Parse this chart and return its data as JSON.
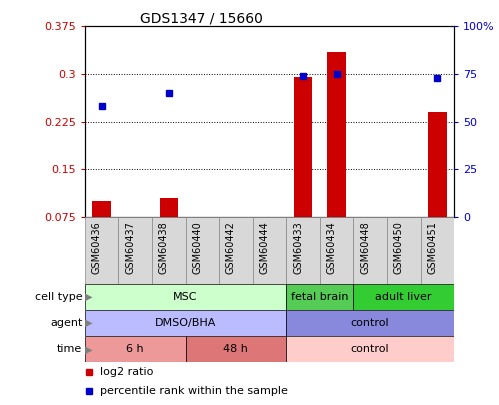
{
  "title": "GDS1347 / 15660",
  "samples": [
    "GSM60436",
    "GSM60437",
    "GSM60438",
    "GSM60440",
    "GSM60442",
    "GSM60444",
    "GSM60433",
    "GSM60434",
    "GSM60448",
    "GSM60450",
    "GSM60451"
  ],
  "log2_ratio": [
    0.1,
    0.0,
    0.105,
    0.0,
    0.0,
    0.0,
    0.295,
    0.335,
    0.0,
    0.0,
    0.24
  ],
  "percentile_rank": [
    58,
    0,
    65,
    0,
    0,
    0,
    74,
    75,
    0,
    0,
    73
  ],
  "ylim_left": [
    0.075,
    0.375
  ],
  "ylim_right": [
    0,
    100
  ],
  "yticks_left": [
    0.075,
    0.15,
    0.225,
    0.3,
    0.375
  ],
  "yticks_right": [
    0,
    25,
    50,
    75,
    100
  ],
  "ytick_labels_left": [
    "0.075",
    "0.15",
    "0.225",
    "0.3",
    "0.375"
  ],
  "ytick_labels_right": [
    "0",
    "25",
    "50",
    "75",
    "100%"
  ],
  "bar_color": "#cc0000",
  "dot_color": "#0000cc",
  "cell_type_groups": [
    {
      "label": "MSC",
      "start": 0,
      "end": 6,
      "color": "#ccffcc"
    },
    {
      "label": "fetal brain",
      "start": 6,
      "end": 8,
      "color": "#55cc55"
    },
    {
      "label": "adult liver",
      "start": 8,
      "end": 11,
      "color": "#33cc33"
    }
  ],
  "agent_groups": [
    {
      "label": "DMSO/BHA",
      "start": 0,
      "end": 6,
      "color": "#bbbbff"
    },
    {
      "label": "control",
      "start": 6,
      "end": 11,
      "color": "#8888dd"
    }
  ],
  "time_groups": [
    {
      "label": "6 h",
      "start": 0,
      "end": 3,
      "color": "#ee9999"
    },
    {
      "label": "48 h",
      "start": 3,
      "end": 6,
      "color": "#dd7777"
    },
    {
      "label": "control",
      "start": 6,
      "end": 11,
      "color": "#ffcccc"
    }
  ],
  "row_labels": [
    "cell type",
    "agent",
    "time"
  ],
  "legend_items": [
    {
      "label": "log2 ratio",
      "color": "#cc0000"
    },
    {
      "label": "percentile rank within the sample",
      "color": "#0000cc"
    }
  ]
}
